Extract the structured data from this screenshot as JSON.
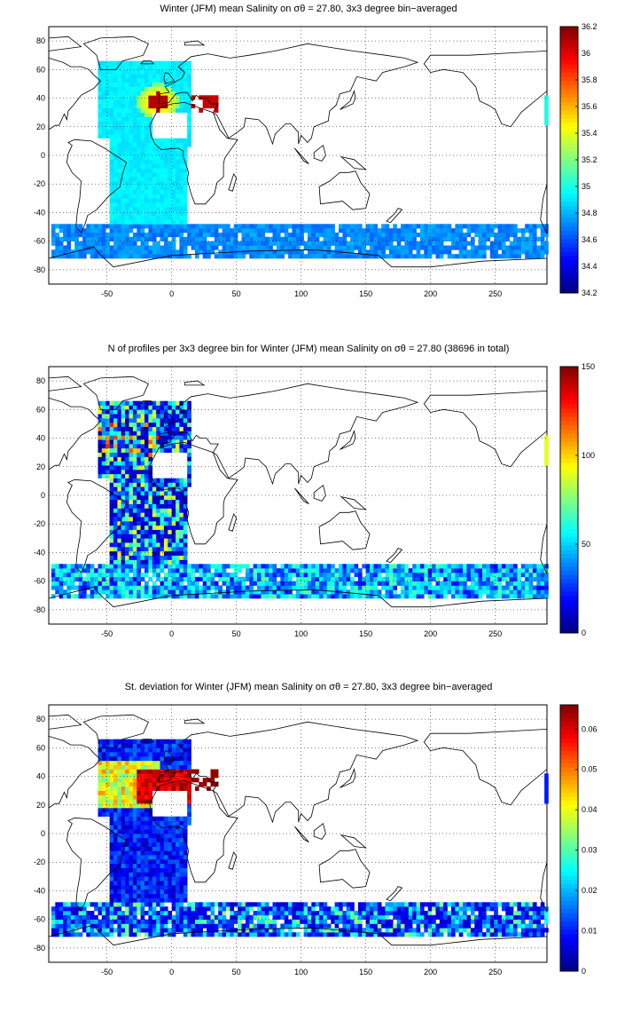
{
  "panels": [
    {
      "title": "Winter (JFM) mean Salinity on σθ = 27.80, 3x3 degree bin−averaged",
      "xticks": [
        "-50",
        "0",
        "50",
        "100",
        "150",
        "200",
        "250"
      ],
      "yticks": [
        "80",
        "60",
        "40",
        "20",
        "0",
        "-20",
        "-40",
        "-60",
        "-80"
      ],
      "colorbar": {
        "ticks": [
          "36.2",
          "36",
          "35.8",
          "35.6",
          "35.4",
          "35.2",
          "35",
          "34.8",
          "34.6",
          "34.4",
          "34.2"
        ],
        "min": 34.2,
        "max": 36.2
      }
    },
    {
      "title": "N of profiles per 3x3 degree bin for Winter (JFM) mean Salinity on σθ = 27.80 (38696 in total)",
      "xticks": [
        "-50",
        "0",
        "50",
        "100",
        "150",
        "200",
        "250"
      ],
      "yticks": [
        "80",
        "60",
        "40",
        "20",
        "0",
        "-20",
        "-40",
        "-60",
        "-80"
      ],
      "colorbar": {
        "ticks": [
          "150",
          "100",
          "50",
          "0"
        ],
        "min": 0,
        "max": 150
      }
    },
    {
      "title": "St. deviation for Winter (JFM) mean Salinity on σθ = 27.80, 3x3 degree bin−averaged",
      "xticks": [
        "-50",
        "0",
        "50",
        "100",
        "150",
        "200",
        "250"
      ],
      "yticks": [
        "80",
        "60",
        "40",
        "20",
        "0",
        "-20",
        "-40",
        "-60",
        "-80"
      ],
      "colorbar": {
        "ticks": [
          "0.06",
          "0.05",
          "0.04",
          "0.03",
          "0.02",
          "0.01",
          "0"
        ],
        "min": 0,
        "max": 0.066
      }
    }
  ],
  "map_extent": {
    "lon": [
      -95,
      290
    ],
    "lat": [
      -90,
      90
    ]
  },
  "colormap": "jet"
}
